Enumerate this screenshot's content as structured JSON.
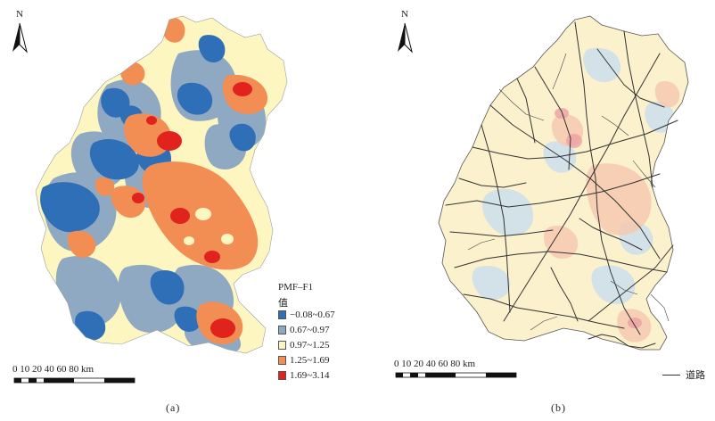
{
  "panel_a": {
    "north": "N",
    "legend": {
      "title": "PMF–F1",
      "subtitle": "值",
      "items": [
        {
          "label": "−0.08~0.67",
          "color": "#2e6fb8"
        },
        {
          "label": "0.67~0.97",
          "color": "#8fa9c2"
        },
        {
          "label": "0.97~1.25",
          "color": "#fdf6c0"
        },
        {
          "label": "1.25~1.69",
          "color": "#f28d54"
        },
        {
          "label": "1.69~3.14",
          "color": "#e0231d"
        }
      ]
    },
    "scale_labels": "0 10 20      40      60      80  km",
    "caption": "(a)"
  },
  "panel_b": {
    "north": "N",
    "scale_labels": "0 10 20      40      60      80  km",
    "road_label": "道路",
    "caption": "(b)"
  }
}
